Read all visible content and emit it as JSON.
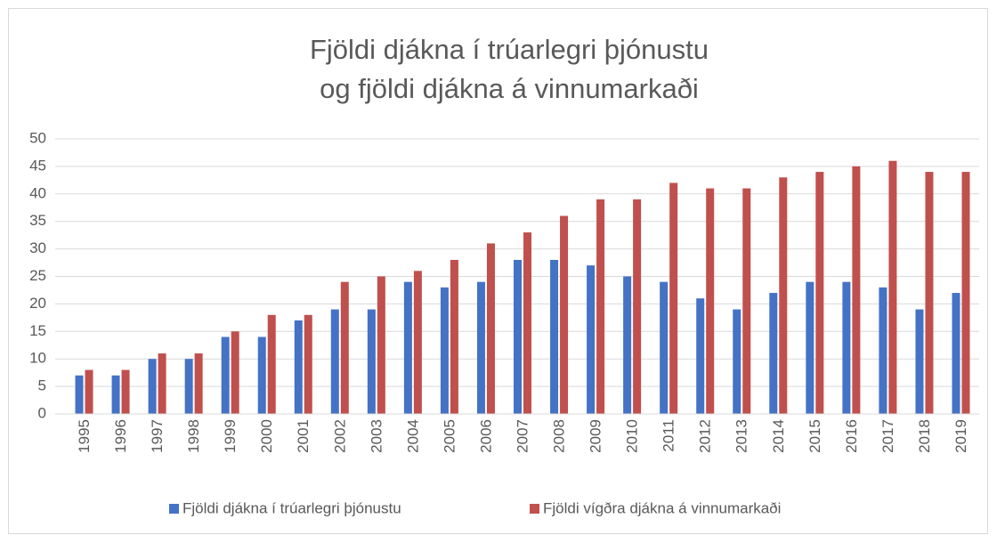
{
  "chart_data": {
    "type": "bar",
    "title": [
      "Fjöldi djákna í trúarlegri þjónustu",
      "og fjöldi djákna á vinnumarkaði"
    ],
    "categories": [
      "1995",
      "1996",
      "1997",
      "1998",
      "1999",
      "2000",
      "2001",
      "2002",
      "2003",
      "2004",
      "2005",
      "2006",
      "2007",
      "2008",
      "2009",
      "2010",
      "2011",
      "2012",
      "2013",
      "2014",
      "2015",
      "2016",
      "2017",
      "2018",
      "2019"
    ],
    "series": [
      {
        "name": "Fjöldi djákna í trúarlegri þjónustu",
        "color": "#4472c4",
        "values": [
          7,
          7,
          10,
          10,
          14,
          14,
          17,
          19,
          19,
          24,
          23,
          24,
          28,
          28,
          27,
          25,
          24,
          21,
          19,
          22,
          24,
          24,
          23,
          19,
          22
        ]
      },
      {
        "name": "Fjöldi vígðra djákna á vinnumarkaði",
        "color": "#c0504d",
        "values": [
          8,
          8,
          11,
          11,
          15,
          18,
          18,
          24,
          25,
          26,
          28,
          31,
          33,
          36,
          39,
          39,
          42,
          41,
          41,
          43,
          44,
          45,
          46,
          44,
          44
        ]
      }
    ],
    "ylim": [
      0,
      50
    ],
    "yticks": [
      0,
      5,
      10,
      15,
      20,
      25,
      30,
      35,
      40,
      45,
      50
    ],
    "grid": true,
    "legend": "bottom"
  }
}
